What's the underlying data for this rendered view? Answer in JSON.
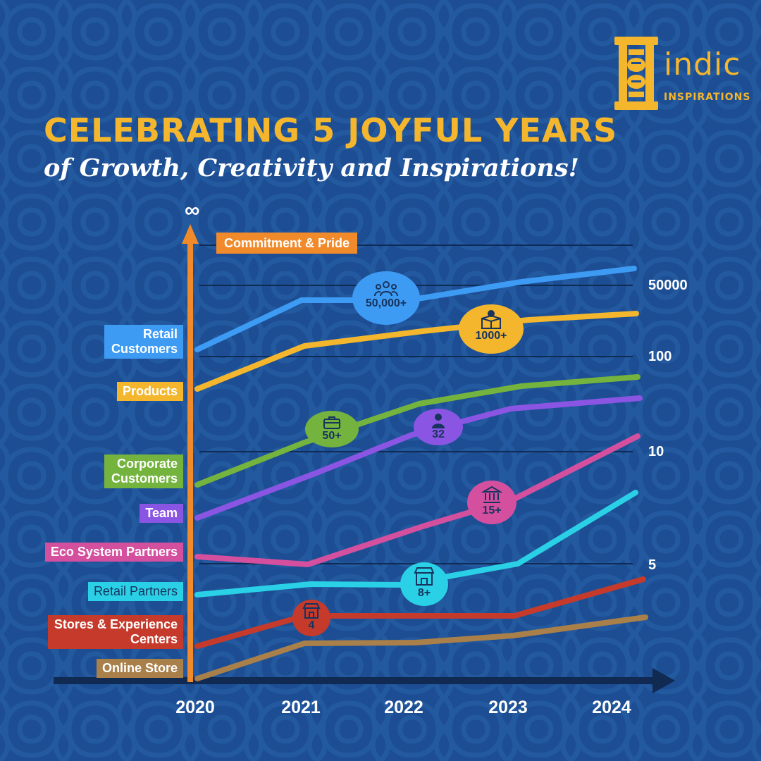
{
  "header": {
    "title": "CELEBRATING 5 JOYFUL YEARS",
    "subtitle": "of Growth, Creativity and Inspirations!"
  },
  "logo": {
    "wordmark": "indic",
    "tagline": "INSPIRATIONS",
    "color": "#f4b62d"
  },
  "colors": {
    "background": "#1d4e93",
    "accent": "#f4b62d",
    "axis_y": "#f08a2b",
    "axis_x": "#102a52"
  },
  "chart_data": {
    "type": "line",
    "x": [
      "2020",
      "2021",
      "2022",
      "2023",
      "2024"
    ],
    "y_axis": {
      "scale": "non-linear",
      "top_symbol": "∞",
      "top_label": "Commitment & Pride",
      "tick_labels": [
        "5",
        "10",
        "100",
        "50000"
      ]
    },
    "series": [
      {
        "name": "Retail Customers",
        "color": "#3d9bf4",
        "end_value": 50000,
        "badge": "50,000+",
        "badge_icon": "people-icon",
        "badge_year": "2022"
      },
      {
        "name": "Products",
        "color": "#f4b62d",
        "end_value": 1000,
        "badge": "1000+",
        "badge_icon": "new-box-icon",
        "badge_year": "2023"
      },
      {
        "name": "Corporate Customers",
        "color": "#74b33e",
        "end_value": 50,
        "badge": "50+",
        "badge_icon": "briefcase-icon",
        "badge_year": "2021"
      },
      {
        "name": "Team",
        "color": "#8b55e3",
        "end_value": 32,
        "badge": "32",
        "badge_icon": "person-icon",
        "badge_year": "2022"
      },
      {
        "name": "Eco System Partners",
        "color": "#d4509f",
        "end_value": 15,
        "badge": "15+",
        "badge_icon": "bank-icon",
        "badge_year": "2023"
      },
      {
        "name": "Retail Partners",
        "color": "#2ad0e6",
        "end_value": 8,
        "badge": "8+",
        "badge_icon": "storefront-icon",
        "badge_year": "2022"
      },
      {
        "name": "Stores & Experience Centers",
        "color": "#c53a2b",
        "end_value": 4,
        "badge": "4",
        "badge_icon": "store-icon",
        "badge_year": "2021"
      },
      {
        "name": "Online Store",
        "color": "#a97f4a",
        "end_value": null,
        "badge": null,
        "badge_icon": null,
        "badge_year": null
      }
    ]
  }
}
